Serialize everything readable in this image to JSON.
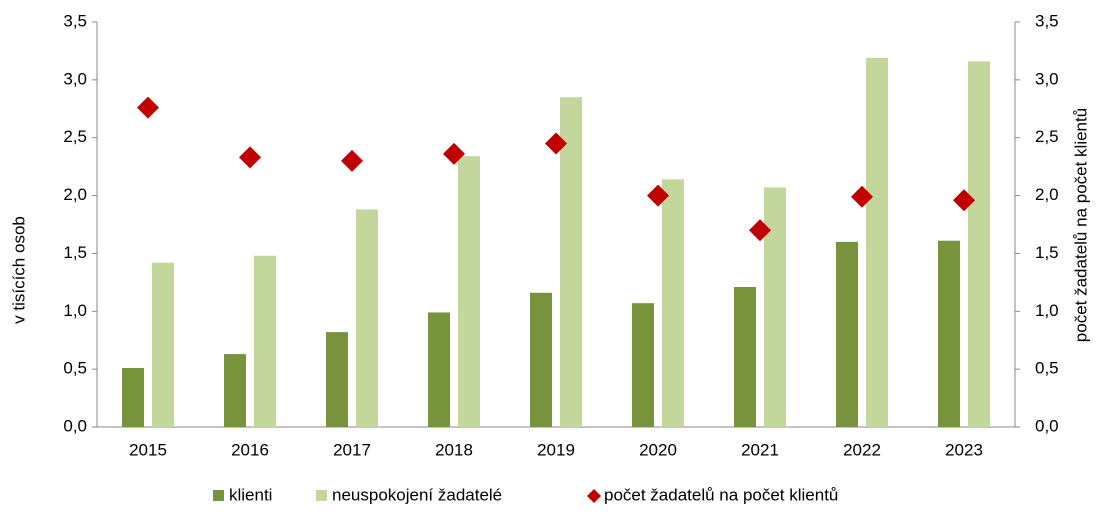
{
  "chart_data": {
    "type": "bar",
    "categories": [
      "2015",
      "2016",
      "2017",
      "2018",
      "2019",
      "2020",
      "2021",
      "2022",
      "2023"
    ],
    "ylabel": "v tisících osob",
    "y2label": "počet žadatelů na počet klientů",
    "ylim": [
      0,
      3.5
    ],
    "yticks": [
      {
        "value": 0,
        "label": "0,0"
      },
      {
        "value": 0.5,
        "label": "0,5"
      },
      {
        "value": 1,
        "label": "1,0"
      },
      {
        "value": 1.5,
        "label": "1,5"
      },
      {
        "value": 2,
        "label": "2,0"
      },
      {
        "value": 2.5,
        "label": "2,5"
      },
      {
        "value": 3,
        "label": "3,0"
      },
      {
        "value": 3.5,
        "label": "3,5"
      }
    ],
    "y2lim": [
      0,
      3.5
    ],
    "y2ticks": [
      {
        "value": 0,
        "label": "0,0"
      },
      {
        "value": 0.5,
        "label": "0,5"
      },
      {
        "value": 1,
        "label": "1,0"
      },
      {
        "value": 1.5,
        "label": "1,5"
      },
      {
        "value": 2,
        "label": "2,0"
      },
      {
        "value": 2.5,
        "label": "2,5"
      },
      {
        "value": 3,
        "label": "3,0"
      },
      {
        "value": 3.5,
        "label": "3,5"
      }
    ],
    "legend": "bottom",
    "series": [
      {
        "name": "klienti",
        "type": "bar",
        "color": "#77933c",
        "values": [
          0.51,
          0.63,
          0.82,
          0.99,
          1.16,
          1.07,
          1.21,
          1.6,
          1.61
        ]
      },
      {
        "name": "neuspokojení žadatelé",
        "type": "bar",
        "color": "#c3d69b",
        "values": [
          1.42,
          1.48,
          1.88,
          2.34,
          2.85,
          2.14,
          2.07,
          3.19,
          3.16
        ]
      },
      {
        "name": "počet žadatelů na počet klientů",
        "type": "scatter",
        "axis": "y2",
        "color": "#c00000",
        "values": [
          2.76,
          2.33,
          2.3,
          2.36,
          2.45,
          2.0,
          1.7,
          1.99,
          1.96
        ]
      }
    ]
  }
}
